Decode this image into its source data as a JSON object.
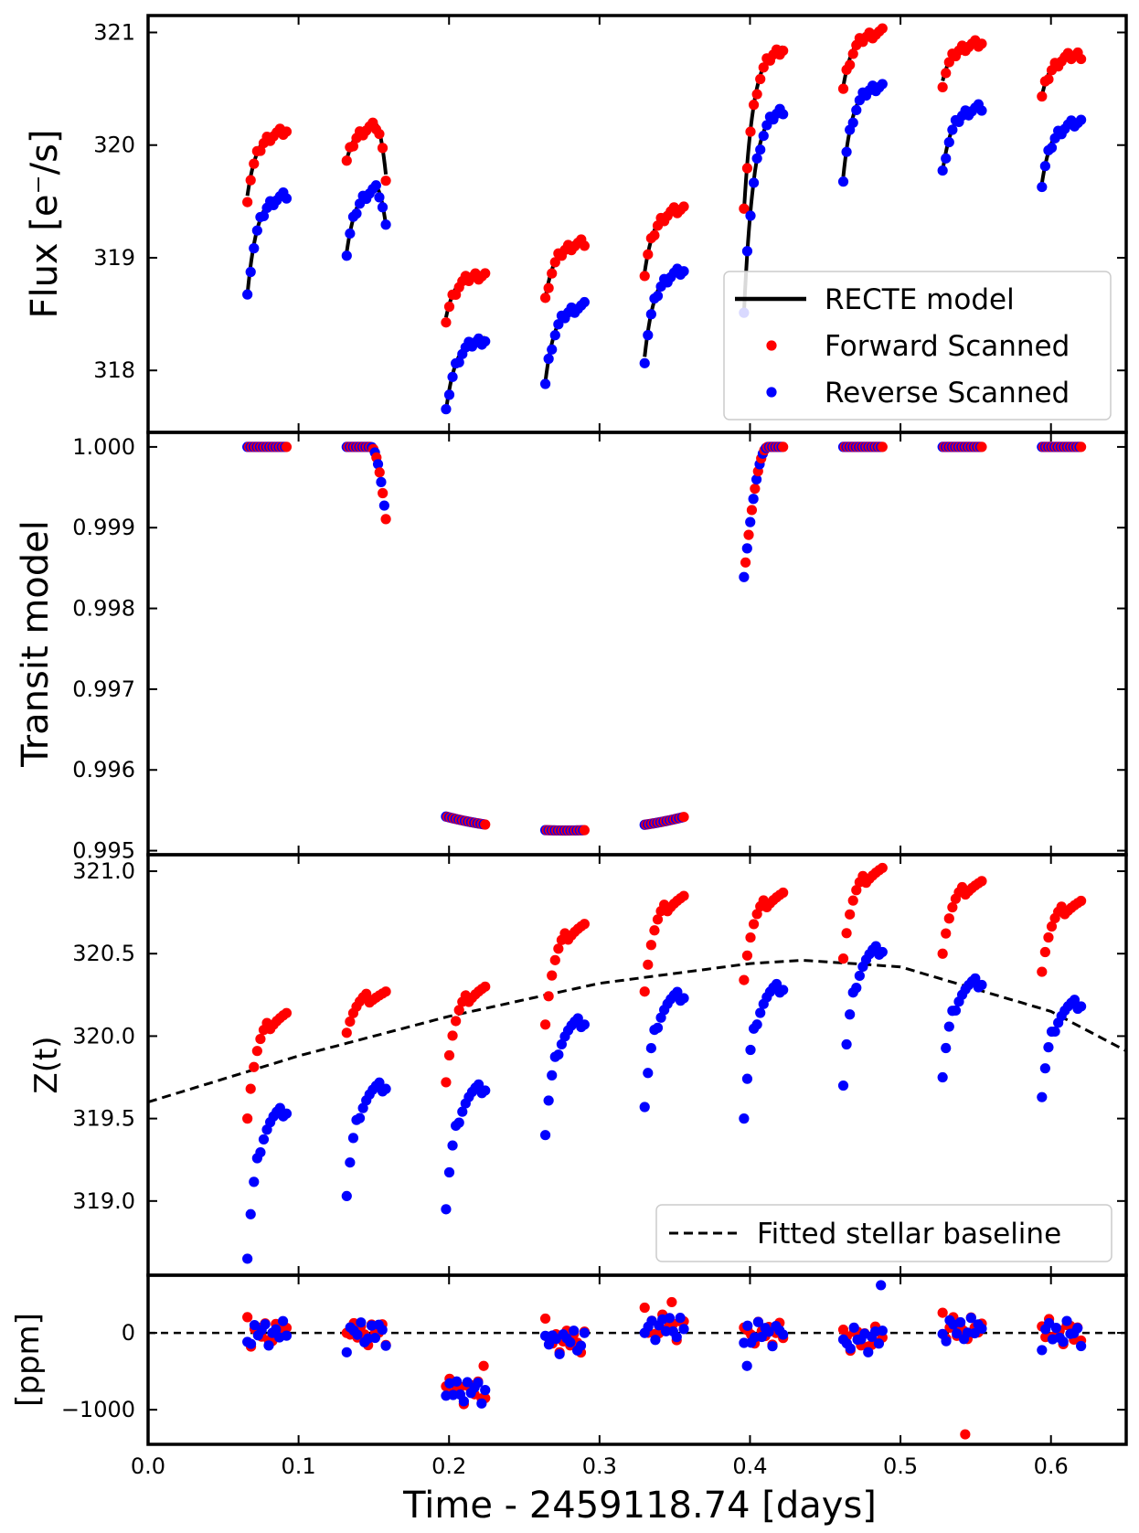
{
  "figure": {
    "xlabel": "Time - 2459118.74 [days]",
    "xlim": [
      0.0,
      0.65
    ],
    "xticks": [
      0.0,
      0.1,
      0.2,
      0.3,
      0.4,
      0.5,
      0.6
    ],
    "xtick_labels": [
      "0.0",
      "0.1",
      "0.2",
      "0.3",
      "0.4",
      "0.5",
      "0.6"
    ],
    "orbits": [
      {
        "t0": 0.066,
        "t1": 0.092
      },
      {
        "t0": 0.132,
        "t1": 0.158
      },
      {
        "t0": 0.198,
        "t1": 0.224
      },
      {
        "t0": 0.264,
        "t1": 0.29
      },
      {
        "t0": 0.33,
        "t1": 0.356
      },
      {
        "t0": 0.396,
        "t1": 0.422
      },
      {
        "t0": 0.462,
        "t1": 0.488
      },
      {
        "t0": 0.528,
        "t1": 0.554
      },
      {
        "t0": 0.594,
        "t1": 0.62
      }
    ],
    "colors": {
      "forward": "#ff0000",
      "reverse": "#0000ff",
      "model": "#000000"
    }
  },
  "chart_data": [
    {
      "type": "scatter",
      "panel": "flux",
      "ylabel": "Flux [e⁻/s]",
      "ylim": [
        317.45,
        321.15
      ],
      "yticks": [
        318,
        319,
        320,
        321
      ],
      "ytick_labels": [
        "318",
        "319",
        "320",
        "321"
      ],
      "legend": {
        "position": "lower-right",
        "entries": [
          "RECTE model",
          "Forward Scanned",
          "Reverse Scanned"
        ]
      },
      "series": [
        {
          "name": "Forward Scanned",
          "color": "#ff0000",
          "orbits": [
            {
              "start": 319.53,
              "end": 320.12
            },
            {
              "start": 319.85,
              "end": 320.18,
              "turn": 319.72
            },
            {
              "start": 318.45,
              "end": 318.85
            },
            {
              "start": 318.62,
              "end": 319.13
            },
            {
              "start": 318.85,
              "end": 319.43
            },
            {
              "start": 319.4,
              "end": 320.85
            },
            {
              "start": 320.5,
              "end": 321.0
            },
            {
              "start": 320.55,
              "end": 320.9
            },
            {
              "start": 320.42,
              "end": 320.8
            }
          ]
        },
        {
          "name": "Reverse Scanned",
          "color": "#0000ff",
          "orbits": [
            {
              "start": 318.65,
              "end": 319.55
            },
            {
              "start": 319.03,
              "end": 319.63,
              "turn": 319.27
            },
            {
              "start": 317.62,
              "end": 318.27
            },
            {
              "start": 317.88,
              "end": 318.57
            },
            {
              "start": 318.1,
              "end": 318.88
            },
            {
              "start": 318.5,
              "end": 320.31
            },
            {
              "start": 319.7,
              "end": 320.53
            },
            {
              "start": 319.75,
              "end": 320.33
            },
            {
              "start": 319.64,
              "end": 320.2
            }
          ]
        }
      ]
    },
    {
      "type": "scatter",
      "panel": "transit",
      "ylabel": "Transit model",
      "ylim": [
        0.99495,
        1.00018
      ],
      "yticks": [
        0.995,
        0.996,
        0.997,
        0.998,
        0.999,
        1.0
      ],
      "ytick_labels": [
        "0.995",
        "0.996",
        "0.997",
        "0.998",
        "0.999",
        "1.000"
      ],
      "transit": {
        "ingress_start": 0.148,
        "ingress_end": 0.181,
        "egress_start": 0.374,
        "egress_end": 0.412,
        "depth": 0.00475,
        "center": 0.2775
      }
    },
    {
      "type": "scatter",
      "panel": "systematics",
      "ylabel": "Z(t)",
      "ylim": [
        318.55,
        321.1
      ],
      "yticks": [
        319.0,
        319.5,
        320.0,
        320.5,
        321.0
      ],
      "ytick_labels": [
        "319.0",
        "319.5",
        "320.0",
        "320.5",
        "321.0"
      ],
      "legend": {
        "position": "lower-right",
        "entries": [
          "Fitted stellar baseline"
        ]
      },
      "baseline": {
        "x": [
          0.0,
          0.1,
          0.2,
          0.3,
          0.4,
          0.435,
          0.5,
          0.6,
          0.65
        ],
        "y": [
          319.6,
          319.88,
          320.12,
          320.32,
          320.44,
          320.46,
          320.42,
          320.15,
          319.91
        ]
      },
      "series": [
        {
          "name": "Forward Scanned",
          "color": "#ff0000",
          "orbits": [
            {
              "start": 319.53,
              "end": 320.12
            },
            {
              "start": 320.05,
              "end": 320.25
            },
            {
              "start": 319.75,
              "end": 320.28
            },
            {
              "start": 320.1,
              "end": 320.66
            },
            {
              "start": 320.3,
              "end": 320.83
            },
            {
              "start": 320.37,
              "end": 320.85
            },
            {
              "start": 320.5,
              "end": 321.0
            },
            {
              "start": 320.53,
              "end": 320.92
            },
            {
              "start": 320.42,
              "end": 320.8
            }
          ]
        },
        {
          "name": "Reverse Scanned",
          "color": "#0000ff",
          "orbits": [
            {
              "start": 318.65,
              "end": 319.55
            },
            {
              "start": 319.03,
              "end": 319.7
            },
            {
              "start": 318.95,
              "end": 319.69
            },
            {
              "start": 319.4,
              "end": 320.09
            },
            {
              "start": 319.57,
              "end": 320.25
            },
            {
              "start": 319.5,
              "end": 320.3
            },
            {
              "start": 319.7,
              "end": 320.53
            },
            {
              "start": 319.75,
              "end": 320.33
            },
            {
              "start": 319.63,
              "end": 320.2
            }
          ]
        }
      ]
    },
    {
      "type": "scatter",
      "panel": "residuals",
      "ylabel": "[ppm]",
      "ylim": [
        -1450,
        750
      ],
      "yticks": [
        -1000,
        0
      ],
      "ytick_labels": [
        "−1000",
        "0"
      ],
      "orbit_offsets": [
        0,
        0,
        -750,
        -100,
        80,
        0,
        -80,
        50,
        0
      ],
      "outliers": [
        {
          "x": 0.543,
          "y": -1320,
          "color": "#ff0000"
        },
        {
          "x": 0.487,
          "y": 620,
          "color": "#0000ff"
        },
        {
          "x": 0.398,
          "y": -430,
          "color": "#0000ff"
        },
        {
          "x": 0.223,
          "y": -430,
          "color": "#ff0000"
        },
        {
          "x": 0.348,
          "y": 400,
          "color": "#ff0000"
        }
      ]
    }
  ]
}
